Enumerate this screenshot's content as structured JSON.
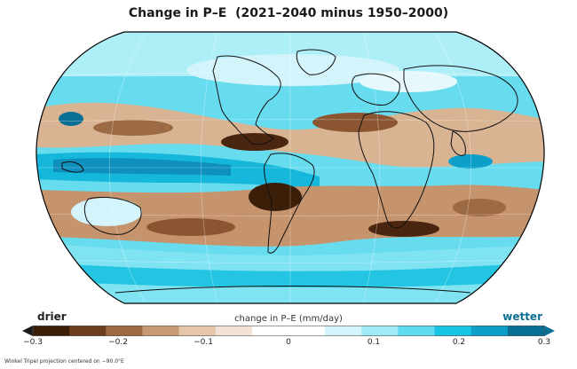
{
  "map": {
    "title": "Change in P–E  (2021–2040 minus 1950–2000)",
    "projection_note": "Winkel Tripel projection centered on −90.0°E"
  },
  "colorbar": {
    "title": "change in P–E (mm/day)",
    "left_label": "drier",
    "right_label": "wetter",
    "tick_labels": [
      "−0.3",
      "−0.2",
      "−0.1",
      "0",
      "0.1",
      "0.2",
      "0.3"
    ],
    "range": [
      -0.3,
      0.3
    ],
    "colors": [
      "#3b1e08",
      "#6b3f1d",
      "#9c6a43",
      "#c79a74",
      "#e5c6ab",
      "#f3e3d6",
      "#ffffff",
      "#ffffff",
      "#d3f4fb",
      "#9eeaf5",
      "#5fdcef",
      "#18c4e4",
      "#0b9fc9",
      "#0a6f94"
    ],
    "left_arrow_color": "#1a1a1a",
    "right_arrow_color": "#0a6f94"
  }
}
